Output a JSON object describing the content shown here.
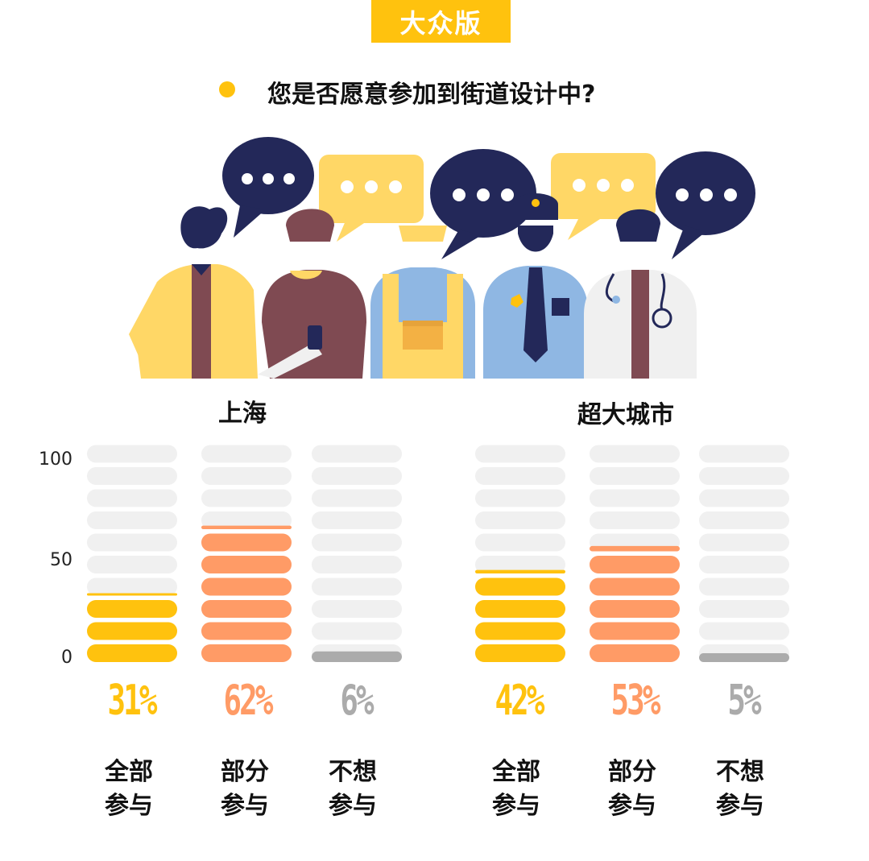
{
  "badge": {
    "label": "大众版"
  },
  "question": {
    "text": "您是否愿意参加到街道设计中?"
  },
  "colors": {
    "accent": "#FFC20E",
    "all": "#FFC20E",
    "partial": "#FF9B66",
    "none": "#ABABAB",
    "empty": "#F0F0F0"
  },
  "chart_data": [
    {
      "type": "bar",
      "title": "上海",
      "categories": [
        "全部参与",
        "部分参与",
        "不想参与"
      ],
      "values": [
        31,
        62,
        6
      ],
      "value_labels": [
        "31%",
        "62%",
        "6%"
      ],
      "category_lines": [
        [
          "全部",
          "参与"
        ],
        [
          "部分",
          "参与"
        ],
        [
          "不想",
          "参与"
        ]
      ],
      "yticks": [
        "100",
        "50",
        "0"
      ],
      "ylim": [
        0,
        100
      ]
    },
    {
      "type": "bar",
      "title": "超大城市",
      "categories": [
        "全部参与",
        "部分参与",
        "不想参与"
      ],
      "values": [
        42,
        53,
        5
      ],
      "value_labels": [
        "42%",
        "53%",
        "5%"
      ],
      "category_lines": [
        [
          "全部",
          "参与"
        ],
        [
          "部分",
          "参与"
        ],
        [
          "不想",
          "参与"
        ]
      ],
      "ylim": [
        0,
        100
      ]
    }
  ]
}
